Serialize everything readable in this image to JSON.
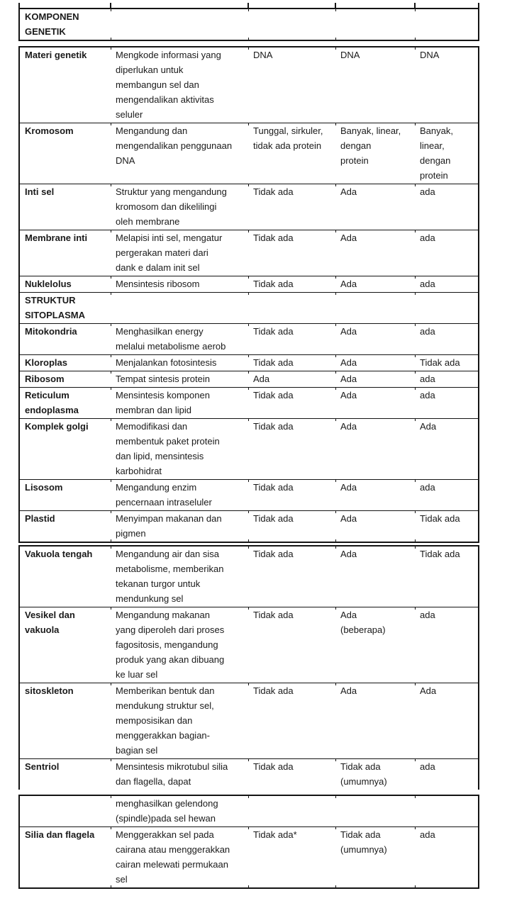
{
  "colors": {
    "text": "#1a1a1a",
    "border": "#141414",
    "background": "#ffffff"
  },
  "table": {
    "segments": [
      {
        "rows": [
          {
            "cells": [
              "KOMPONEN\nGENETIK",
              "",
              "",
              "",
              ""
            ]
          }
        ]
      },
      {
        "rows": [
          {
            "cells": [
              "Materi genetik",
              "Mengkode informasi yang\ndiperlukan untuk\nmembangun sel dan\nmengendalikan aktivitas\nseluler",
              "DNA",
              "DNA",
              "DNA"
            ]
          },
          {
            "cells": [
              "Kromosom",
              "Mengandung dan\nmengendalikan penggunaan\nDNA",
              "Tunggal, sirkuler,\ntidak ada protein",
              "Banyak, linear,\ndengan\nprotein",
              "Banyak,\nlinear,\ndengan\nprotein"
            ]
          },
          {
            "cells": [
              "Inti sel",
              "Struktur yang mengandung\nkromosom dan dikelilingi\noleh membrane",
              "Tidak ada",
              "Ada",
              "ada"
            ]
          },
          {
            "cells": [
              "Membrane inti",
              "Melapisi inti sel, mengatur\npergerakan materi dari\ndank e dalam init sel",
              "Tidak ada",
              "Ada",
              "ada"
            ]
          },
          {
            "cells": [
              "Nuklelolus",
              "Mensintesis ribosom",
              "Tidak ada",
              "Ada",
              "ada"
            ]
          },
          {
            "cells": [
              "STRUKTUR\nSITOPLASMA",
              "",
              "",
              "",
              ""
            ]
          },
          {
            "cells": [
              "Mitokondria",
              "Menghasilkan energy\nmelalui metabolisme aerob",
              "Tidak ada",
              "Ada",
              "ada"
            ]
          },
          {
            "cells": [
              "Kloroplas",
              "Menjalankan fotosintesis",
              "Tidak ada",
              "Ada",
              "Tidak ada"
            ]
          },
          {
            "cells": [
              "Ribosom",
              "Tempat sintesis protein",
              "Ada",
              "Ada",
              "ada"
            ]
          },
          {
            "cells": [
              "Reticulum\nendoplasma",
              "Mensintesis komponen\nmembran dan lipid",
              "Tidak ada",
              "Ada",
              "ada"
            ]
          },
          {
            "cells": [
              "Komplek golgi",
              "Memodifikasi dan\nmembentuk paket protein\ndan lipid, mensintesis\nkarbohidrat",
              "Tidak ada",
              "Ada",
              "Ada"
            ]
          },
          {
            "cells": [
              "Lisosom",
              "Mengandung enzim\npencernaan intraseluler",
              "Tidak ada",
              "Ada",
              "ada"
            ]
          },
          {
            "cells": [
              "Plastid",
              "Menyimpan makanan dan\npigmen",
              "Tidak ada",
              "Ada",
              "Tidak ada"
            ]
          }
        ]
      },
      {
        "rows": [
          {
            "cells": [
              "Vakuola tengah",
              "Mengandung air dan sisa\nmetabolisme, memberikan\ntekanan turgor untuk\nmendunkung sel",
              "Tidak ada",
              "Ada",
              "Tidak ada"
            ]
          },
          {
            "cells": [
              "Vesikel dan\nvakuola",
              "Mengandung makanan\nyang diperoleh dari proses\nfagositosis, mengandung\nproduk yang akan dibuang\nke luar sel",
              "Tidak ada",
              "Ada\n(beberapa)",
              "ada"
            ]
          },
          {
            "cells": [
              "sitoskleton",
              "Memberikan bentuk dan\nmendukung struktur sel,\nmemposisikan dan\nmenggerakkan bagian-\nbagian sel",
              "Tidak ada",
              "Ada",
              "Ada"
            ]
          },
          {
            "cells": [
              "Sentriol",
              "Mensintesis mikrotubul silia\ndan flagella, dapat",
              "Tidak ada",
              "Tidak ada\n(umumnya)",
              "ada"
            ]
          }
        ]
      },
      {
        "rows": [
          {
            "cells": [
              "",
              "menghasilkan gelendong\n(spindle)pada sel hewan",
              "",
              "",
              ""
            ]
          },
          {
            "cells": [
              "Silia dan flagela",
              "Menggerakkan sel pada\ncairana atau menggerakkan\ncairan melewati permukaan\nsel",
              "Tidak ada*",
              "Tidak ada\n(umumnya)",
              "ada"
            ]
          }
        ]
      }
    ]
  }
}
